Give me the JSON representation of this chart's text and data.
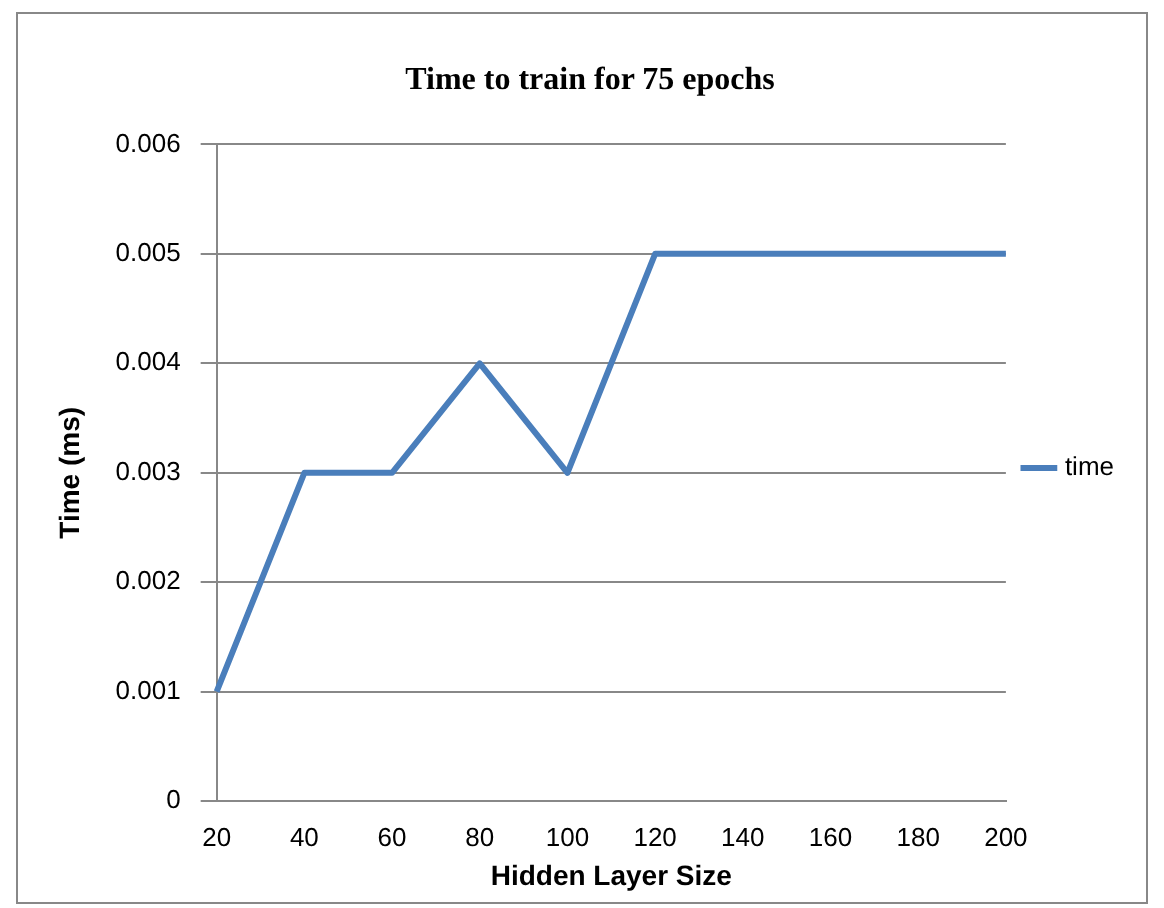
{
  "chart_data": {
    "type": "line",
    "title": "Time to train for 75 epochs",
    "xlabel": "Hidden Layer Size",
    "ylabel": "Time (ms)",
    "categories": [
      "20",
      "40",
      "60",
      "80",
      "100",
      "120",
      "140",
      "160",
      "180",
      "200"
    ],
    "series": [
      {
        "name": "time",
        "color": "#4a7ebb",
        "values": [
          0.001,
          0.003,
          0.003,
          0.004,
          0.003,
          0.005,
          0.005,
          0.005,
          0.005,
          0.005
        ]
      }
    ],
    "ylim": [
      0,
      0.006
    ],
    "yticks": [
      0,
      0.001,
      0.002,
      0.003,
      0.004,
      0.005,
      0.006
    ],
    "grid": "y",
    "legend": "right",
    "marker": "none",
    "line_style": "solid"
  }
}
